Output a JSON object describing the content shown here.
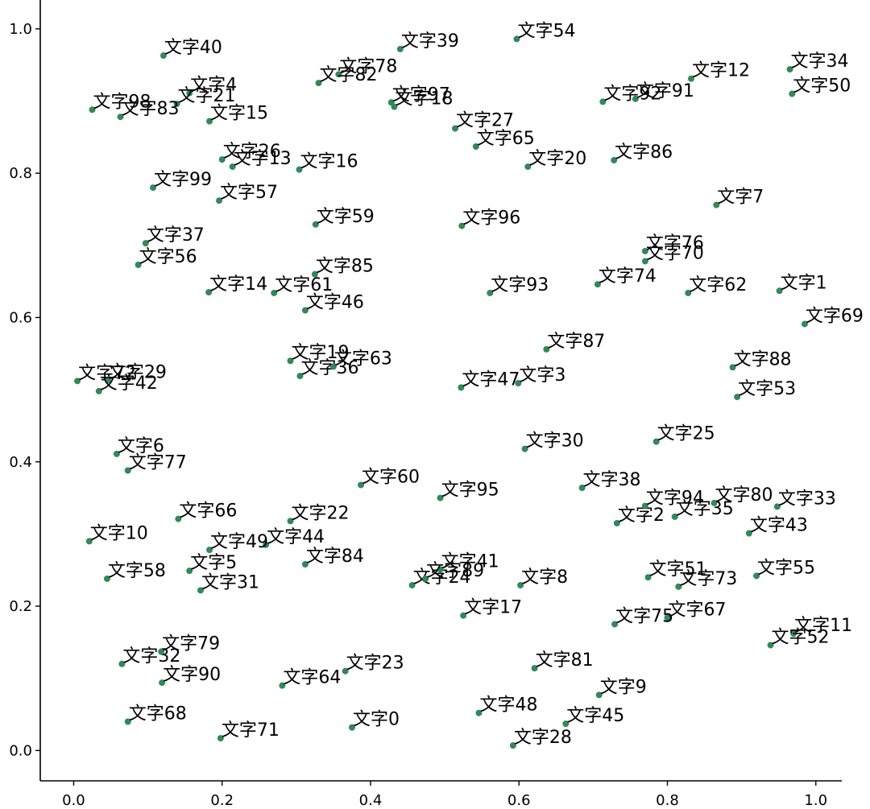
{
  "chart_data": {
    "type": "scatter",
    "title": "",
    "xlabel": "",
    "ylabel": "",
    "xlim": [
      -0.045,
      1.035
    ],
    "ylim": [
      -0.042,
      1.04
    ],
    "x_ticks": [
      0.0,
      0.2,
      0.4,
      0.6,
      0.8,
      1.0
    ],
    "y_ticks": [
      0.0,
      0.2,
      0.4,
      0.6,
      0.8,
      1.0
    ],
    "x_tick_labels": [
      "0.0",
      "0.2",
      "0.4",
      "0.6",
      "0.8",
      "1.0"
    ],
    "y_tick_labels": [
      "0.0",
      "0.2",
      "0.4",
      "0.6",
      "0.8",
      "1.0"
    ],
    "grid": false,
    "point_color": "#2e8b57",
    "points": [
      {
        "label": "文字0",
        "x": 0.375,
        "y": 0.032
      },
      {
        "label": "文字1",
        "x": 0.951,
        "y": 0.637
      },
      {
        "label": "文字2",
        "x": 0.732,
        "y": 0.315
      },
      {
        "label": "文字3",
        "x": 0.599,
        "y": 0.509
      },
      {
        "label": "文字4",
        "x": 0.156,
        "y": 0.911
      },
      {
        "label": "文字5",
        "x": 0.156,
        "y": 0.249
      },
      {
        "label": "文字6",
        "x": 0.058,
        "y": 0.411
      },
      {
        "label": "文字7",
        "x": 0.866,
        "y": 0.756
      },
      {
        "label": "文字8",
        "x": 0.602,
        "y": 0.229
      },
      {
        "label": "文字9",
        "x": 0.708,
        "y": 0.077
      },
      {
        "label": "文字10",
        "x": 0.021,
        "y": 0.29
      },
      {
        "label": "文字11",
        "x": 0.97,
        "y": 0.162
      },
      {
        "label": "文字12",
        "x": 0.832,
        "y": 0.931
      },
      {
        "label": "文字13",
        "x": 0.214,
        "y": 0.809
      },
      {
        "label": "文字14",
        "x": 0.182,
        "y": 0.635
      },
      {
        "label": "文字15",
        "x": 0.183,
        "y": 0.872
      },
      {
        "label": "文字16",
        "x": 0.304,
        "y": 0.805
      },
      {
        "label": "文字17",
        "x": 0.525,
        "y": 0.187
      },
      {
        "label": "文字18",
        "x": 0.432,
        "y": 0.892
      },
      {
        "label": "文字19",
        "x": 0.292,
        "y": 0.54
      },
      {
        "label": "文字20",
        "x": 0.612,
        "y": 0.809
      },
      {
        "label": "文字21",
        "x": 0.139,
        "y": 0.896
      },
      {
        "label": "文字22",
        "x": 0.292,
        "y": 0.318
      },
      {
        "label": "文字23",
        "x": 0.366,
        "y": 0.11
      },
      {
        "label": "文字24",
        "x": 0.456,
        "y": 0.229
      },
      {
        "label": "文字25",
        "x": 0.785,
        "y": 0.428
      },
      {
        "label": "文字26",
        "x": 0.2,
        "y": 0.819
      },
      {
        "label": "文字27",
        "x": 0.514,
        "y": 0.862
      },
      {
        "label": "文字28",
        "x": 0.592,
        "y": 0.007
      },
      {
        "label": "文字29",
        "x": 0.046,
        "y": 0.513
      },
      {
        "label": "文字30",
        "x": 0.608,
        "y": 0.418
      },
      {
        "label": "文字31",
        "x": 0.171,
        "y": 0.222
      },
      {
        "label": "文字32",
        "x": 0.065,
        "y": 0.12
      },
      {
        "label": "文字33",
        "x": 0.948,
        "y": 0.338
      },
      {
        "label": "文字34",
        "x": 0.965,
        "y": 0.944
      },
      {
        "label": "文字35",
        "x": 0.81,
        "y": 0.324
      },
      {
        "label": "文字36",
        "x": 0.305,
        "y": 0.519
      },
      {
        "label": "文字37",
        "x": 0.097,
        "y": 0.703
      },
      {
        "label": "文字38",
        "x": 0.685,
        "y": 0.364
      },
      {
        "label": "文字39",
        "x": 0.44,
        "y": 0.972
      },
      {
        "label": "文字40",
        "x": 0.121,
        "y": 0.963
      },
      {
        "label": "文字41",
        "x": 0.494,
        "y": 0.251
      },
      {
        "label": "文字42",
        "x": 0.034,
        "y": 0.498
      },
      {
        "label": "文字43",
        "x": 0.91,
        "y": 0.301
      },
      {
        "label": "文字44",
        "x": 0.259,
        "y": 0.285
      },
      {
        "label": "文字45",
        "x": 0.663,
        "y": 0.037
      },
      {
        "label": "文字46",
        "x": 0.312,
        "y": 0.61
      },
      {
        "label": "文字47",
        "x": 0.522,
        "y": 0.503
      },
      {
        "label": "文字48",
        "x": 0.546,
        "y": 0.052
      },
      {
        "label": "文字49",
        "x": 0.183,
        "y": 0.278
      },
      {
        "label": "文字50",
        "x": 0.968,
        "y": 0.91
      },
      {
        "label": "文字51",
        "x": 0.774,
        "y": 0.24
      },
      {
        "label": "文字52",
        "x": 0.939,
        "y": 0.146
      },
      {
        "label": "文字53",
        "x": 0.894,
        "y": 0.49
      },
      {
        "label": "文字54",
        "x": 0.597,
        "y": 0.986
      },
      {
        "label": "文字55",
        "x": 0.92,
        "y": 0.242
      },
      {
        "label": "文字56",
        "x": 0.087,
        "y": 0.673
      },
      {
        "label": "文字57",
        "x": 0.196,
        "y": 0.762
      },
      {
        "label": "文字58",
        "x": 0.045,
        "y": 0.238
      },
      {
        "label": "文字59",
        "x": 0.326,
        "y": 0.729
      },
      {
        "label": "文字60",
        "x": 0.387,
        "y": 0.368
      },
      {
        "label": "文字61",
        "x": 0.27,
        "y": 0.634
      },
      {
        "label": "文字62",
        "x": 0.828,
        "y": 0.634
      },
      {
        "label": "文字63",
        "x": 0.35,
        "y": 0.532
      },
      {
        "label": "文字64",
        "x": 0.281,
        "y": 0.09
      },
      {
        "label": "文字65",
        "x": 0.542,
        "y": 0.837
      },
      {
        "label": "文字66",
        "x": 0.141,
        "y": 0.321
      },
      {
        "label": "文字67",
        "x": 0.8,
        "y": 0.184
      },
      {
        "label": "文字68",
        "x": 0.073,
        "y": 0.04
      },
      {
        "label": "文字69",
        "x": 0.985,
        "y": 0.591
      },
      {
        "label": "文字70",
        "x": 0.77,
        "y": 0.678
      },
      {
        "label": "文字71",
        "x": 0.198,
        "y": 0.017
      },
      {
        "label": "文字72",
        "x": 0.005,
        "y": 0.512
      },
      {
        "label": "文字73",
        "x": 0.815,
        "y": 0.227
      },
      {
        "label": "文字74",
        "x": 0.706,
        "y": 0.646
      },
      {
        "label": "文字75",
        "x": 0.729,
        "y": 0.175
      },
      {
        "label": "文字76",
        "x": 0.77,
        "y": 0.692
      },
      {
        "label": "文字77",
        "x": 0.073,
        "y": 0.388
      },
      {
        "label": "文字78",
        "x": 0.357,
        "y": 0.937
      },
      {
        "label": "文字79",
        "x": 0.118,
        "y": 0.137
      },
      {
        "label": "文字80",
        "x": 0.863,
        "y": 0.343
      },
      {
        "label": "文字81",
        "x": 0.621,
        "y": 0.114
      },
      {
        "label": "文字82",
        "x": 0.33,
        "y": 0.925
      },
      {
        "label": "文字83",
        "x": 0.063,
        "y": 0.878
      },
      {
        "label": "文字84",
        "x": 0.312,
        "y": 0.258
      },
      {
        "label": "文字85",
        "x": 0.325,
        "y": 0.66
      },
      {
        "label": "文字86",
        "x": 0.728,
        "y": 0.818
      },
      {
        "label": "文字87",
        "x": 0.637,
        "y": 0.556
      },
      {
        "label": "文字88",
        "x": 0.888,
        "y": 0.531
      },
      {
        "label": "文字89",
        "x": 0.474,
        "y": 0.238
      },
      {
        "label": "文字90",
        "x": 0.119,
        "y": 0.094
      },
      {
        "label": "文字91",
        "x": 0.757,
        "y": 0.903
      },
      {
        "label": "文字92",
        "x": 0.713,
        "y": 0.899
      },
      {
        "label": "文字93",
        "x": 0.561,
        "y": 0.634
      },
      {
        "label": "文字94",
        "x": 0.77,
        "y": 0.339
      },
      {
        "label": "文字95",
        "x": 0.494,
        "y": 0.35
      },
      {
        "label": "文字96",
        "x": 0.523,
        "y": 0.727
      },
      {
        "label": "文字97",
        "x": 0.428,
        "y": 0.898
      },
      {
        "label": "文字98",
        "x": 0.025,
        "y": 0.888
      },
      {
        "label": "文字99",
        "x": 0.107,
        "y": 0.78
      }
    ]
  }
}
